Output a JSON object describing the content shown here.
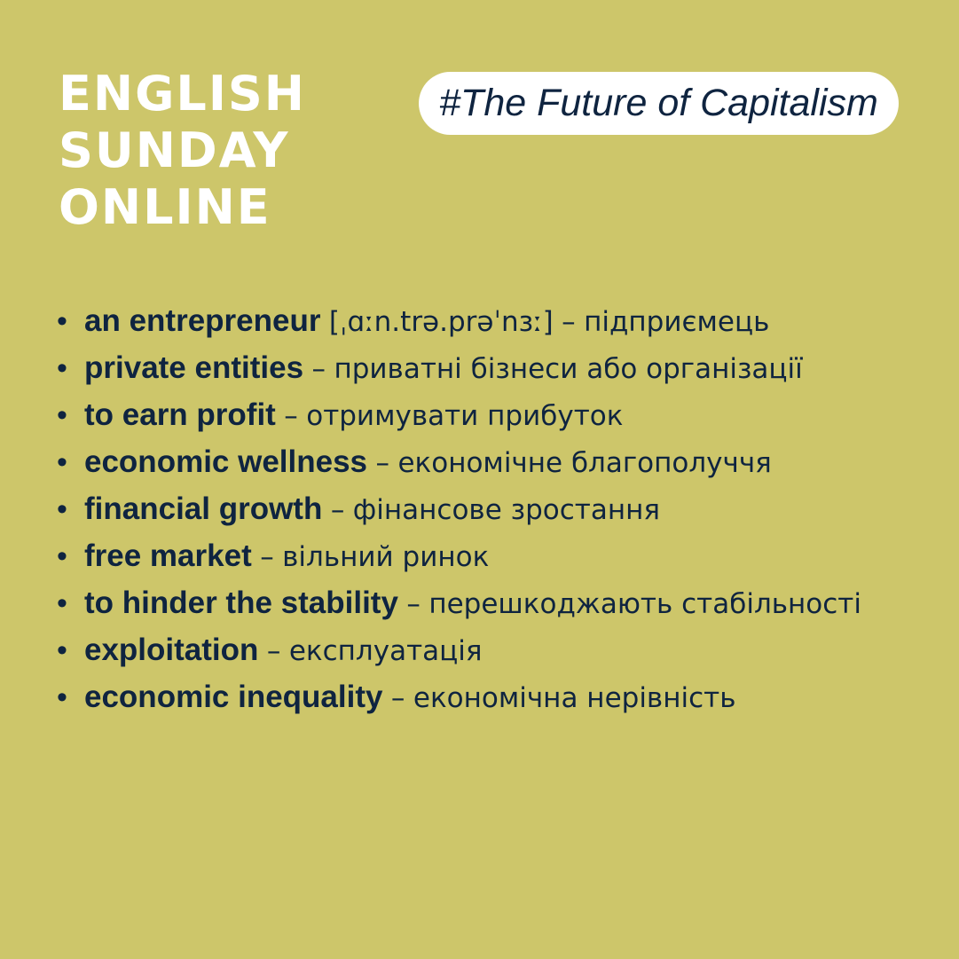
{
  "brand": {
    "line1": "ENGLISH",
    "line2": "SUNDAY",
    "line3": "ONLINE"
  },
  "hashtag": "#The Future of Capitalism",
  "bullet_glyph": "•",
  "vocabulary": [
    {
      "term": "an entrepreneur",
      "ipa": "[ˌɑːn.trə.prəˈnɜː]",
      "dash": "–",
      "translation": "підприємець"
    },
    {
      "term": "private entities",
      "ipa": "",
      "dash": "–",
      "translation": "приватні бізнеси або організації"
    },
    {
      "term": "to earn profit",
      "ipa": "",
      "dash": "–",
      "translation": "отримувати прибуток"
    },
    {
      "term": "economic wellness",
      "ipa": "",
      "dash": "–",
      "translation": "економічне благополуччя"
    },
    {
      "term": "financial growth",
      "ipa": "",
      "dash": "–",
      "translation": "фінансове зростання"
    },
    {
      "term": "free market",
      "ipa": "",
      "dash": "–",
      "translation": "вільний ринок"
    },
    {
      "term": "to hinder the stability",
      "ipa": "",
      "dash": "–",
      "translation": "перешкоджають стабільності"
    },
    {
      "term": "exploitation",
      "ipa": "",
      "dash": "–",
      "translation": "експлуатація"
    },
    {
      "term": "economic inequality",
      "ipa": "",
      "dash": "–",
      "translation": "економічна нерівність"
    }
  ],
  "colors": {
    "background": "#CDC66A",
    "text_primary": "#0F2440",
    "brand_text": "#FFFFFF",
    "pill_background": "#FFFFFF"
  }
}
